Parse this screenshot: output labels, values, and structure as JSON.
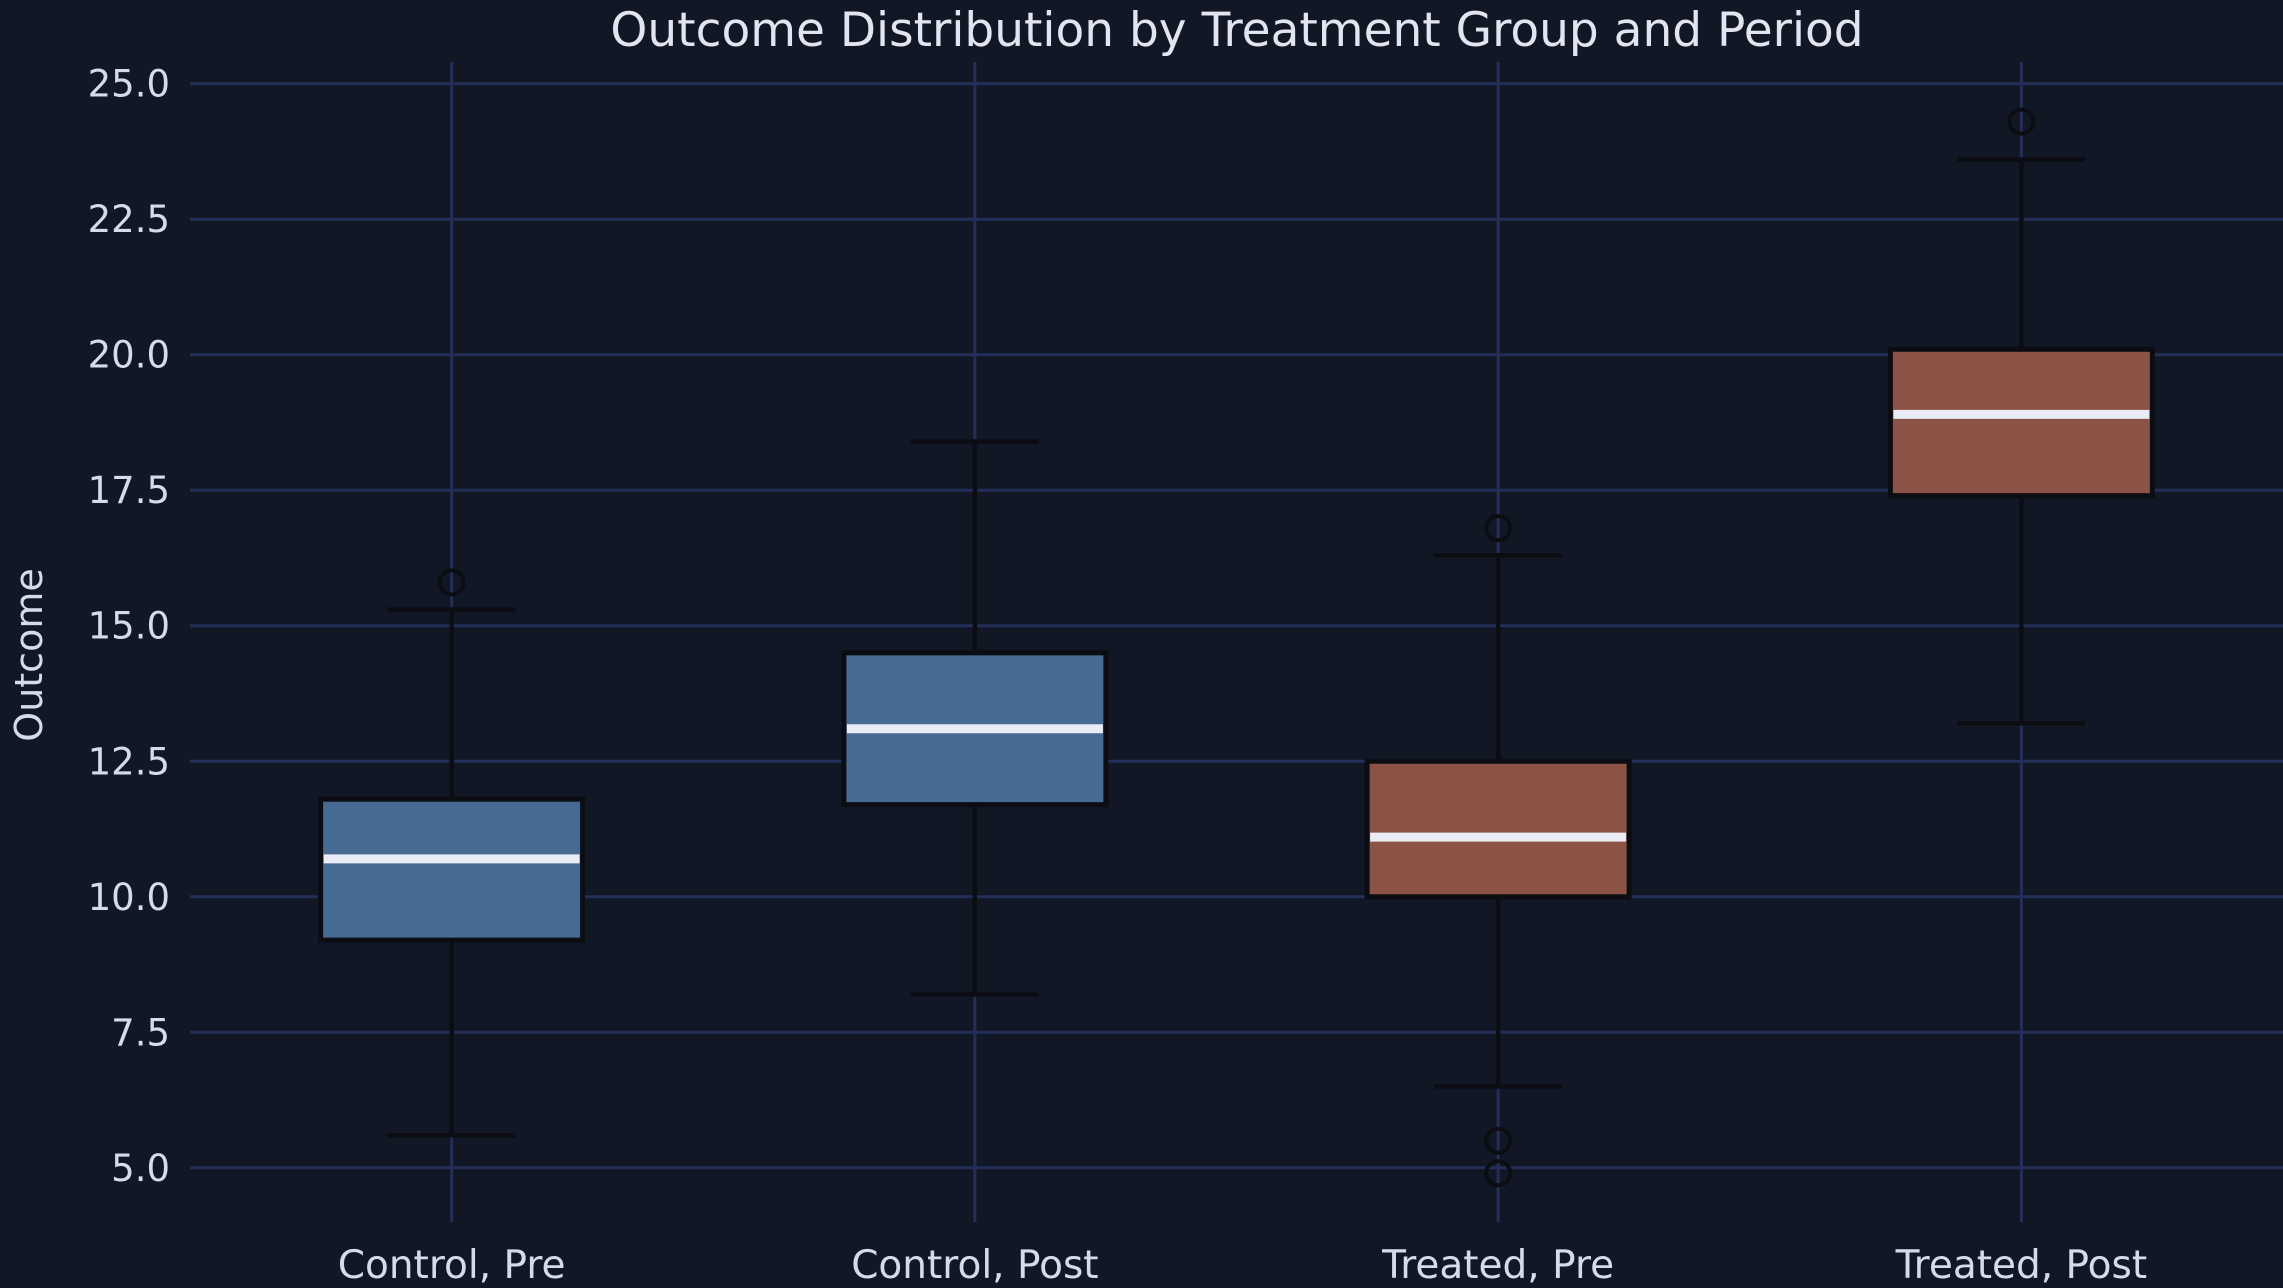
{
  "chart_data": {
    "type": "box",
    "title": "Outcome Distribution by Treatment Group and Period",
    "xlabel": "",
    "ylabel": "Outcome",
    "categories": [
      "Control, Pre",
      "Control, Post",
      "Treated, Pre",
      "Treated, Post"
    ],
    "yticks": [
      5.0,
      7.5,
      10.0,
      12.5,
      15.0,
      17.5,
      20.0,
      22.5,
      25.0
    ],
    "ylim": [
      4.0,
      25.4
    ],
    "grid": true,
    "legend": "none",
    "series": [
      {
        "label": "Control, Pre",
        "color": "#476a93",
        "whisker_low": 5.6,
        "q1": 9.2,
        "median": 10.7,
        "q3": 11.8,
        "whisker_high": 15.3,
        "outliers": [
          15.8
        ]
      },
      {
        "label": "Control, Post",
        "color": "#476a93",
        "whisker_low": 8.2,
        "q1": 11.7,
        "median": 13.1,
        "q3": 14.5,
        "whisker_high": 18.4,
        "outliers": []
      },
      {
        "label": "Treated, Pre",
        "color": "#8b5246",
        "whisker_low": 6.5,
        "q1": 10.0,
        "median": 11.1,
        "q3": 12.5,
        "whisker_high": 16.3,
        "outliers": [
          16.8,
          5.5,
          4.9
        ]
      },
      {
        "label": "Treated, Post",
        "color": "#8b5246",
        "whisker_low": 13.2,
        "q1": 17.4,
        "median": 18.9,
        "q3": 20.1,
        "whisker_high": 23.6,
        "outliers": [
          24.3
        ]
      }
    ],
    "colors": {
      "background": "#121726",
      "gridline": "#232f58",
      "box_blue": "#476a93",
      "box_red": "#8b5246",
      "median_line": "#e9ecf4",
      "whisker_line": "#0b0d13",
      "text": "#d6dbe8",
      "title_text": "#e2e5f0"
    }
  }
}
